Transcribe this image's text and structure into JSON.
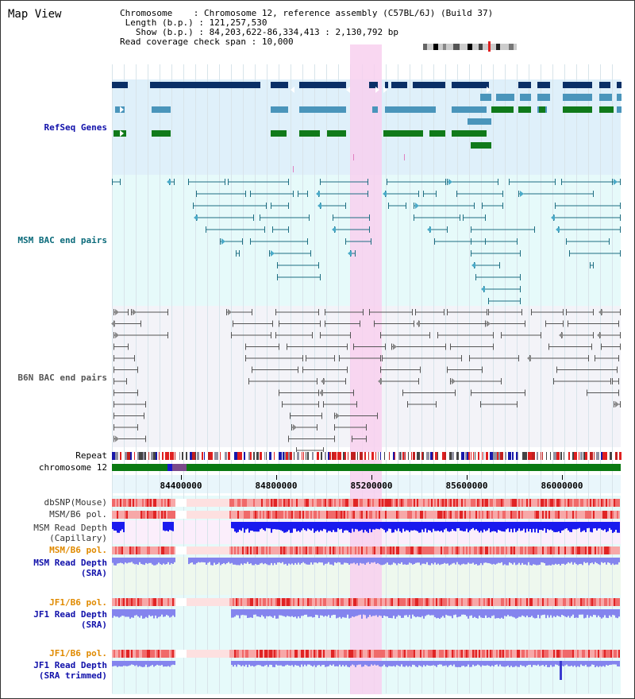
{
  "title": "Map View",
  "info": {
    "chromosome_key": "Chromosome",
    "chromosome_val": "Chromosome 12, reference assembly (C57BL/6J) (Build 37)",
    "length_key": "Length (b.p.)",
    "length_val": "121,257,530",
    "show_key": "Show (b.p.)",
    "show_val": "84,203,622-86,334,413 : 2,130,792 bp",
    "span_key": "Read coverage check span",
    "span_val": "10,000"
  },
  "tracks": {
    "refseq": "RefSeq Genes",
    "msm_bac": "MSM BAC end pairs",
    "b6n_bac": "B6N BAC end pairs",
    "repeat": "Repeat",
    "chrom": "chromosome 12",
    "dbsnp": "dbSNP(Mouse)",
    "msm_pol1": "MSM/B6 pol.",
    "msm_depth_cap_1": "MSM Read Depth",
    "msm_depth_cap_2": "(Capillary)",
    "msm_pol2": "MSM/B6 pol.",
    "msm_sra_1": "MSM Read Depth",
    "msm_sra_2": "(SRA)",
    "jf1_pol1": "JF1/B6 pol.",
    "jf1_sra_1": "JF1 Read Depth",
    "jf1_sra_2": "(SRA)",
    "jf1_pol2": "JF1/B6 pol.",
    "jf1_trim_1": "JF1 Read Depth",
    "jf1_trim_2": "(SRA trimmed)"
  },
  "axis": {
    "ticks": [
      "84400000",
      "84800000",
      "85200000",
      "85600000",
      "86000000"
    ]
  },
  "colors": {
    "refseq_bg": "#dff0fa",
    "msm_bg": "#e6fafa",
    "b6n_bg": "#f3f3f8",
    "highlight": "#f8d0ee",
    "navy": "#0a2f66",
    "steel": "#4a95bb",
    "green": "#107a1a",
    "teal": "#1e6e82",
    "gray": "#555555",
    "depth_blue": "#1a1aee",
    "depth_light": "#8484ee"
  }
}
